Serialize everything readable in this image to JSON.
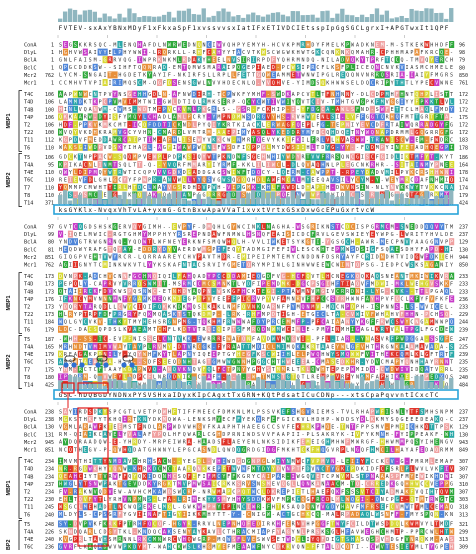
{
  "rows": [
    "ConA",
    "DlyL",
    "BclA",
    "BclC",
    "Mcr2",
    "Mcr1",
    "T4C",
    "T4D",
    "T4B",
    "T4P",
    "T2",
    "T22",
    "T11",
    "T6",
    "T5",
    "T4A",
    "T4E",
    "T6C",
    "T7",
    "T8",
    "T14"
  ],
  "groups": [
    {
      "label": "MBP1",
      "first": 6,
      "last": 13
    },
    {
      "label": "MBP2",
      "first": 14,
      "last": 20
    }
  ],
  "blocks": [
    {
      "consensus": "FVTEV-sxAxYBNxMDyF1xFkxaSpF1xvssvvsxIatIFxETIVDCIEtsspIpGgSGCLgrxI+APGTwxIt1QPF",
      "start_numbers": [
        "1",
        "1",
        "1",
        "1",
        "762",
        "1",
        "106",
        "106",
        "100",
        "106",
        "106",
        "100",
        "112",
        "110",
        "106",
        "95",
        "110",
        "110",
        "110",
        "110",
        "371"
      ],
      "end_numbers": [
        "96",
        "98",
        "79",
        "80",
        "850",
        "761",
        "172",
        "172",
        "172",
        "175",
        "172",
        "172",
        "183",
        "178",
        "186",
        "164",
        "178",
        "174",
        "174",
        "179",
        "424"
      ]
    },
    {
      "consensus": "ksGYKlx-NvqxVhTvLA+yxmG-GtnBxwApaVVaTixvxtVrtxGSxDxwGcEPuGxrtvcW",
      "start_numbers": [
        "97",
        "99",
        "80",
        "81",
        "851",
        "762",
        "173",
        "173",
        "173",
        "176",
        "173",
        "173",
        "184",
        "179",
        "187",
        "165",
        "179",
        "175",
        "175",
        "180",
        "425"
      ],
      "end_numbers": [
        "237",
        "237",
        "129",
        "130",
        "944",
        "850",
        "233",
        "233",
        "233",
        "236",
        "233",
        "229",
        "244",
        "239",
        "247",
        "225",
        "239",
        "235",
        "235",
        "240",
        "484"
      ]
    },
    {
      "consensus": "GSC-hDQBGDYNDNxPYSVSHxaIDyxKIpCAgxtTxGRN+KQtPdsatICuCDNp---xtsCpaPqvvntICxcTC",
      "start_numbers": [
        "238",
        "238",
        "130",
        "131",
        "945",
        "851",
        "234",
        "234",
        "234",
        "237",
        "234",
        "230",
        "245",
        "240",
        "248",
        "226",
        "240",
        "236",
        "236",
        "241",
        "485"
      ],
      "end_numbers": [
        "237",
        "237",
        "129",
        "130",
        "943",
        "849",
        "307",
        "307",
        "307",
        "310",
        "307",
        "303",
        "318",
        "313",
        "321",
        "299",
        "313",
        "309",
        "309",
        "314",
        "537"
      ]
    }
  ],
  "colors": {
    "hydrophobic": "#4f86d9",
    "glycine": "#e8903a",
    "acidic": "#c83cc8",
    "basic": "#e0352a",
    "polar": "#2ea83a",
    "proline": "#d8d832",
    "cysteine": "#f0a0a0",
    "aromatic": "#2aa8a8",
    "histogram": "#8fb6bf",
    "highlight_box": "#2aa3d9",
    "red_box": "#e01818",
    "marker": "#2e6fd0"
  }
}
